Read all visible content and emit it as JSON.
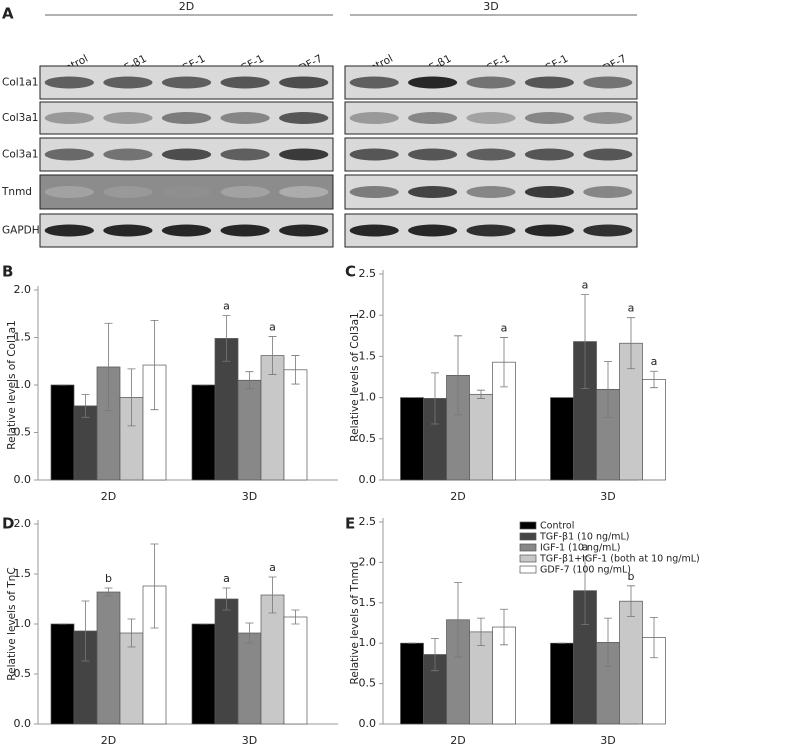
{
  "blot": {
    "panel": "A",
    "groups": [
      {
        "label": "2D",
        "lanes": [
          "Control",
          "TGF-β1",
          "IGF-1",
          "TGF-β1+IGF-1",
          "GDF-7"
        ]
      },
      {
        "label": "3D",
        "lanes": [
          "Control",
          "TGF-β1",
          "IGF-1",
          "TGF-β1+IGF-1",
          "GDF-7"
        ]
      }
    ],
    "rows": [
      "Col1a1",
      "Col3a1",
      "Col3a1",
      "Tnmd",
      "GAPDH"
    ]
  },
  "chart_data": [
    {
      "type": "bar",
      "panel": "B",
      "ylabel": "Relative levels of Col1a1",
      "categories": [
        "2D",
        "3D"
      ],
      "ylim": [
        0,
        2
      ],
      "yticks": [
        {
          "value": 0,
          "label": "0.0"
        },
        {
          "value": 0.5,
          "label": "0.5"
        },
        {
          "value": 1,
          "label": "1.0"
        },
        {
          "value": 1.5,
          "label": "1.5"
        },
        {
          "value": 2,
          "label": "2.0"
        }
      ],
      "series": [
        {
          "color": "#000000",
          "values": [
            1.0,
            1.0
          ],
          "errors": [
            0,
            0
          ],
          "annotations": [
            null,
            null
          ]
        },
        {
          "color": "#444444",
          "values": [
            0.78,
            1.49
          ],
          "errors": [
            0.12,
            0.24
          ],
          "annotations": [
            null,
            "a"
          ]
        },
        {
          "color": "#888888",
          "values": [
            1.19,
            1.05
          ],
          "errors": [
            0.46,
            0.09
          ],
          "annotations": [
            null,
            null
          ]
        },
        {
          "color": "#c8c8c8",
          "values": [
            0.87,
            1.31
          ],
          "errors": [
            0.3,
            0.2
          ],
          "annotations": [
            null,
            "a"
          ]
        },
        {
          "color": "#ffffff",
          "values": [
            1.21,
            1.16
          ],
          "errors": [
            0.47,
            0.15
          ],
          "annotations": [
            null,
            null
          ]
        }
      ]
    },
    {
      "type": "bar",
      "panel": "C",
      "ylabel": "Relative levels of Col3a1",
      "categories": [
        "2D",
        "3D"
      ],
      "ylim": [
        0,
        2.5
      ],
      "yticks": [
        {
          "value": 0,
          "label": "0.0"
        },
        {
          "value": 0.5,
          "label": "0.5"
        },
        {
          "value": 1,
          "label": "1.0"
        },
        {
          "value": 1.5,
          "label": "1.5"
        },
        {
          "value": 2,
          "label": "2.0"
        },
        {
          "value": 2.5,
          "label": "2.5"
        }
      ],
      "series": [
        {
          "color": "#000000",
          "values": [
            1.0,
            1.0
          ],
          "errors": [
            0,
            0
          ],
          "annotations": [
            null,
            null
          ]
        },
        {
          "color": "#444444",
          "values": [
            0.99,
            1.68
          ],
          "errors": [
            0.31,
            0.57
          ],
          "annotations": [
            null,
            "a"
          ]
        },
        {
          "color": "#888888",
          "values": [
            1.27,
            1.1
          ],
          "errors": [
            0.48,
            0.34
          ],
          "annotations": [
            null,
            null
          ]
        },
        {
          "color": "#c8c8c8",
          "values": [
            1.04,
            1.66
          ],
          "errors": [
            0.05,
            0.31
          ],
          "annotations": [
            null,
            "a"
          ]
        },
        {
          "color": "#ffffff",
          "values": [
            1.43,
            1.22
          ],
          "errors": [
            0.3,
            0.1
          ],
          "annotations": [
            "a",
            "a"
          ]
        }
      ]
    },
    {
      "type": "bar",
      "panel": "D",
      "ylabel": "Relative levels of TnC",
      "categories": [
        "2D",
        "3D"
      ],
      "ylim": [
        0,
        2
      ],
      "yticks": [
        {
          "value": 0,
          "label": "0.0"
        },
        {
          "value": 0.5,
          "label": "0.5"
        },
        {
          "value": 1,
          "label": "1.0"
        },
        {
          "value": 1.5,
          "label": "1.5"
        },
        {
          "value": 2,
          "label": "2.0"
        }
      ],
      "series": [
        {
          "color": "#000000",
          "values": [
            1.0,
            1.0
          ],
          "errors": [
            0,
            0
          ],
          "annotations": [
            null,
            null
          ]
        },
        {
          "color": "#444444",
          "values": [
            0.93,
            1.25
          ],
          "errors": [
            0.3,
            0.11
          ],
          "annotations": [
            null,
            "a"
          ]
        },
        {
          "color": "#888888",
          "values": [
            1.32,
            0.91
          ],
          "errors": [
            0.04,
            0.1
          ],
          "annotations": [
            "b",
            null
          ]
        },
        {
          "color": "#c8c8c8",
          "values": [
            0.91,
            1.29
          ],
          "errors": [
            0.14,
            0.18
          ],
          "annotations": [
            null,
            "a"
          ]
        },
        {
          "color": "#ffffff",
          "values": [
            1.38,
            1.07
          ],
          "errors": [
            0.42,
            0.07
          ],
          "annotations": [
            null,
            null
          ]
        }
      ]
    },
    {
      "type": "bar",
      "panel": "E",
      "ylabel": "Relative levels of Tnmd",
      "categories": [
        "2D",
        "3D"
      ],
      "legend": "top-right",
      "ylim": [
        0,
        2.5
      ],
      "yticks": [
        {
          "value": 0,
          "label": "0.0"
        },
        {
          "value": 0.5,
          "label": "0.5"
        },
        {
          "value": 1,
          "label": "1.0"
        },
        {
          "value": 1.5,
          "label": "1.5"
        },
        {
          "value": 2,
          "label": "2.0"
        },
        {
          "value": 2.5,
          "label": "2.5"
        }
      ],
      "series": [
        {
          "name": "Control",
          "color": "#000000",
          "values": [
            1.0,
            1.0
          ],
          "errors": [
            0,
            0
          ],
          "annotations": [
            null,
            null
          ]
        },
        {
          "name": "TGF-β1 (10 ng/mL)",
          "color": "#444444",
          "values": [
            0.86,
            1.65
          ],
          "errors": [
            0.2,
            0.42
          ],
          "annotations": [
            null,
            "a"
          ]
        },
        {
          "name": "IGF-1 (10 ng/mL)",
          "color": "#888888",
          "values": [
            1.29,
            1.01
          ],
          "errors": [
            0.46,
            0.3
          ],
          "annotations": [
            null,
            null
          ]
        },
        {
          "name": "TGF-β1+IGF-1 (both at 10 ng/mL)",
          "color": "#c8c8c8",
          "values": [
            1.14,
            1.52
          ],
          "errors": [
            0.17,
            0.19
          ],
          "annotations": [
            null,
            "b"
          ]
        },
        {
          "name": "GDF-7 (100 ng/mL)",
          "color": "#ffffff",
          "values": [
            1.2,
            1.07
          ],
          "errors": [
            0.22,
            0.25
          ],
          "annotations": [
            null,
            null
          ]
        }
      ]
    }
  ]
}
